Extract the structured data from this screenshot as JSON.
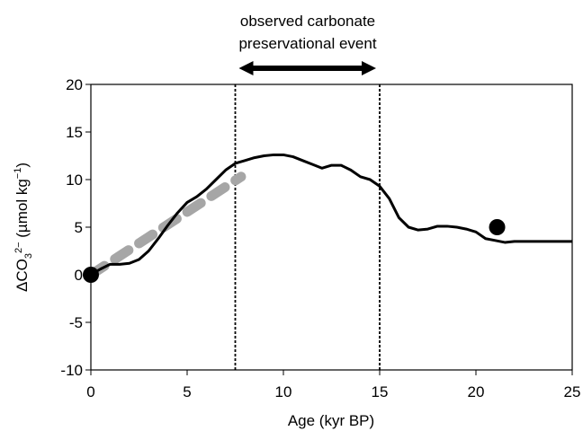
{
  "chart_data": {
    "type": "line",
    "xlabel": "Age (kyr BP)",
    "ylabel": [
      "ΔCO",
      "3",
      "2−",
      " (µmol kg",
      "−1",
      ")"
    ],
    "annotation": [
      "observed carbonate",
      "preservational event"
    ],
    "xlim": [
      0,
      25
    ],
    "xticks": [
      0,
      5,
      10,
      15,
      20,
      25
    ],
    "ylim": [
      -10,
      20
    ],
    "yticks": [
      -10,
      -5,
      0,
      5,
      10,
      15,
      20
    ],
    "vlines": [
      7.5,
      15
    ],
    "series": [
      {
        "style": "solid",
        "color": "#000000",
        "x": [
          0,
          0.5,
          1,
          1.5,
          2,
          2.5,
          3,
          3.5,
          4,
          4.5,
          5,
          5.5,
          6,
          6.5,
          7,
          7.5,
          8,
          8.5,
          9,
          9.5,
          10,
          10.5,
          11,
          11.5,
          12,
          12.5,
          13,
          13.5,
          14,
          14.5,
          15,
          15.5,
          16,
          16.5,
          17,
          17.5,
          18,
          18.5,
          19,
          19.5,
          20,
          20.5,
          21,
          21.5,
          22,
          25
        ],
        "values": [
          0,
          0.6,
          1.1,
          1.1,
          1.2,
          1.6,
          2.5,
          3.8,
          5.2,
          6.5,
          7.6,
          8.2,
          9.0,
          10.0,
          11.0,
          11.7,
          12.0,
          12.3,
          12.5,
          12.6,
          12.6,
          12.4,
          12.0,
          11.6,
          11.2,
          11.5,
          11.5,
          11.0,
          10.3,
          10.0,
          9.3,
          8.0,
          6.0,
          5.0,
          4.7,
          4.8,
          5.1,
          5.1,
          5.0,
          4.8,
          4.5,
          3.8,
          3.6,
          3.4,
          3.5,
          3.5
        ]
      },
      {
        "style": "dashed",
        "color": "#a6a6a6",
        "x": [
          0,
          7.8
        ],
        "values": [
          0,
          10.3
        ]
      },
      {
        "style": "points",
        "color": "#000000",
        "x": [
          0,
          21.1
        ],
        "values": [
          0,
          5
        ]
      }
    ]
  }
}
